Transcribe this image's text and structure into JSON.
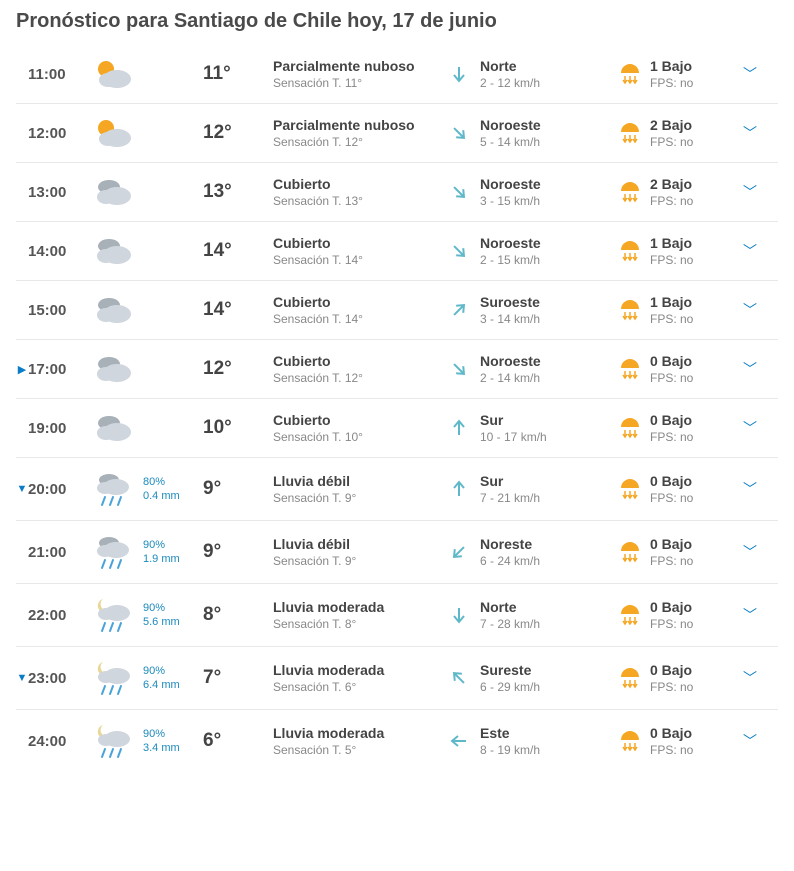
{
  "title": "Pronóstico para Santiago de Chile hoy, 17 de junio",
  "colors": {
    "accent": "#0b7dc6",
    "heading": "#4a4a4a",
    "text_main": "#444444",
    "text_sub": "#888888",
    "precip_text": "#1b8bbd",
    "border": "#e8e8e8",
    "sun": "#f5a623",
    "cloud_light": "#d0d6dd",
    "cloud_dark": "#a8b0b8",
    "rain": "#4aa3d8",
    "moon": "#e8d898",
    "arrow": "#5fb8c9"
  },
  "rows": [
    {
      "marker": "",
      "time": "11:00",
      "icon": "sun_cloud",
      "precip_pct": "",
      "precip_mm": "",
      "temp": "11°",
      "cond": "Parcialmente nuboso",
      "feels": "Sensación T. 11°",
      "wind_dir": "Norte",
      "wind_speed": "2 - 12 km/h",
      "wind_angle": 180,
      "uv": "1 Bajo",
      "fps": "FPS: no"
    },
    {
      "marker": "",
      "time": "12:00",
      "icon": "sun_cloud",
      "precip_pct": "",
      "precip_mm": "",
      "temp": "12°",
      "cond": "Parcialmente nuboso",
      "feels": "Sensación T. 12°",
      "wind_dir": "Noroeste",
      "wind_speed": "5 - 14 km/h",
      "wind_angle": 135,
      "uv": "2 Bajo",
      "fps": "FPS: no"
    },
    {
      "marker": "",
      "time": "13:00",
      "icon": "overcast",
      "precip_pct": "",
      "precip_mm": "",
      "temp": "13°",
      "cond": "Cubierto",
      "feels": "Sensación T. 13°",
      "wind_dir": "Noroeste",
      "wind_speed": "3 - 15 km/h",
      "wind_angle": 135,
      "uv": "2 Bajo",
      "fps": "FPS: no"
    },
    {
      "marker": "",
      "time": "14:00",
      "icon": "overcast",
      "precip_pct": "",
      "precip_mm": "",
      "temp": "14°",
      "cond": "Cubierto",
      "feels": "Sensación T. 14°",
      "wind_dir": "Noroeste",
      "wind_speed": "2 - 15 km/h",
      "wind_angle": 135,
      "uv": "1 Bajo",
      "fps": "FPS: no"
    },
    {
      "marker": "",
      "time": "15:00",
      "icon": "overcast",
      "precip_pct": "",
      "precip_mm": "",
      "temp": "14°",
      "cond": "Cubierto",
      "feels": "Sensación T. 14°",
      "wind_dir": "Suroeste",
      "wind_speed": "3 - 14 km/h",
      "wind_angle": 45,
      "uv": "1 Bajo",
      "fps": "FPS: no"
    },
    {
      "marker": "▶",
      "time": "17:00",
      "icon": "overcast",
      "precip_pct": "",
      "precip_mm": "",
      "temp": "12°",
      "cond": "Cubierto",
      "feels": "Sensación T. 12°",
      "wind_dir": "Noroeste",
      "wind_speed": "2 - 14 km/h",
      "wind_angle": 135,
      "uv": "0 Bajo",
      "fps": "FPS: no"
    },
    {
      "marker": "",
      "time": "19:00",
      "icon": "overcast",
      "precip_pct": "",
      "precip_mm": "",
      "temp": "10°",
      "cond": "Cubierto",
      "feels": "Sensación T. 10°",
      "wind_dir": "Sur",
      "wind_speed": "10 - 17 km/h",
      "wind_angle": 0,
      "uv": "0 Bajo",
      "fps": "FPS: no"
    },
    {
      "marker": "▼",
      "time": "20:00",
      "icon": "rain_light",
      "precip_pct": "80%",
      "precip_mm": "0.4 mm",
      "temp": "9°",
      "cond": "Lluvia débil",
      "feels": "Sensación T. 9°",
      "wind_dir": "Sur",
      "wind_speed": "7 - 21 km/h",
      "wind_angle": 0,
      "uv": "0 Bajo",
      "fps": "FPS: no"
    },
    {
      "marker": "",
      "time": "21:00",
      "icon": "rain_light",
      "precip_pct": "90%",
      "precip_mm": "1.9 mm",
      "temp": "9°",
      "cond": "Lluvia débil",
      "feels": "Sensación T. 9°",
      "wind_dir": "Noreste",
      "wind_speed": "6 - 24 km/h",
      "wind_angle": 225,
      "uv": "0 Bajo",
      "fps": "FPS: no"
    },
    {
      "marker": "",
      "time": "22:00",
      "icon": "rain_night",
      "precip_pct": "90%",
      "precip_mm": "5.6 mm",
      "temp": "8°",
      "cond": "Lluvia moderada",
      "feels": "Sensación T. 8°",
      "wind_dir": "Norte",
      "wind_speed": "7 - 28 km/h",
      "wind_angle": 180,
      "uv": "0 Bajo",
      "fps": "FPS: no"
    },
    {
      "marker": "▼",
      "time": "23:00",
      "icon": "rain_night",
      "precip_pct": "90%",
      "precip_mm": "6.4 mm",
      "temp": "7°",
      "cond": "Lluvia moderada",
      "feels": "Sensación T. 6°",
      "wind_dir": "Sureste",
      "wind_speed": "6 - 29 km/h",
      "wind_angle": 315,
      "uv": "0 Bajo",
      "fps": "FPS: no"
    },
    {
      "marker": "",
      "time": "24:00",
      "icon": "rain_night",
      "precip_pct": "90%",
      "precip_mm": "3.4 mm",
      "temp": "6°",
      "cond": "Lluvia moderada",
      "feels": "Sensación T. 5°",
      "wind_dir": "Este",
      "wind_speed": "8 - 19 km/h",
      "wind_angle": 270,
      "uv": "0 Bajo",
      "fps": "FPS: no"
    }
  ]
}
